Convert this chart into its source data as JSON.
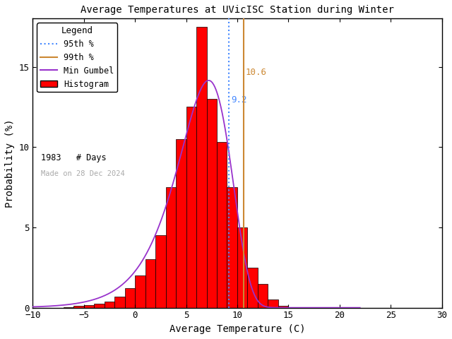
{
  "title": "Average Temperatures at UVicISC Station during Winter",
  "xlabel": "Average Temperature (C)",
  "ylabel": "Probability (%)",
  "xlim": [
    -10,
    30
  ],
  "ylim": [
    0,
    18
  ],
  "yticks": [
    0,
    5,
    10,
    15
  ],
  "xticks": [
    -10,
    -5,
    0,
    5,
    10,
    15,
    20,
    25,
    30
  ],
  "bin_edges": [
    -10,
    -9,
    -8,
    -7,
    -6,
    -5,
    -4,
    -3,
    -2,
    -1,
    0,
    1,
    2,
    3,
    4,
    5,
    6,
    7,
    8,
    9,
    10,
    11,
    12,
    13,
    14,
    15,
    16,
    17,
    18,
    19,
    20,
    21
  ],
  "bar_heights": [
    0.0,
    0.0,
    0.0,
    0.05,
    0.1,
    0.15,
    0.25,
    0.4,
    0.7,
    1.2,
    2.0,
    3.0,
    4.5,
    7.5,
    10.5,
    12.5,
    17.5,
    13.0,
    10.3,
    7.5,
    5.0,
    2.5,
    1.5,
    0.5,
    0.1,
    0.05,
    0.02,
    0.01,
    0.0,
    0.0,
    0.0
  ],
  "bar_color": "#ff0000",
  "bar_edgecolor": "#000000",
  "line_color_gumbel": "#9933cc",
  "line_color_95": "#4488ff",
  "line_color_99": "#cc8833",
  "vline_95": 9.2,
  "vline_99": 10.6,
  "vline_95_color": "#4488ff",
  "vline_99_color": "#cc8833",
  "vline_95_label": "9.2",
  "vline_99_label": "10.6",
  "n_days": 1983,
  "watermark": "Made on 28 Dec 2024",
  "background_color": "#ffffff",
  "gumbel_mu": 7.2,
  "gumbel_beta": 2.6,
  "legend_title": "Legend"
}
